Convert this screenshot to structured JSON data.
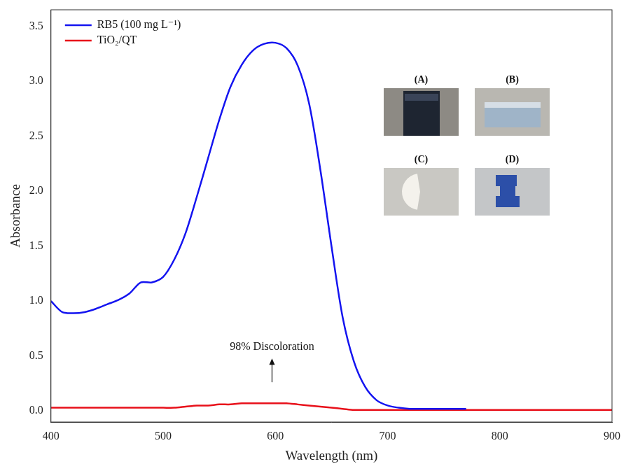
{
  "chart_data": {
    "type": "line",
    "x_label": "Wavelength (nm)",
    "y_label": "Absorbance",
    "x": [
      400,
      410,
      420,
      430,
      440,
      450,
      460,
      470,
      480,
      490,
      500,
      510,
      520,
      530,
      540,
      550,
      560,
      570,
      580,
      590,
      600,
      610,
      620,
      630,
      640,
      650,
      660,
      670,
      680,
      690,
      700,
      710,
      720,
      730,
      740,
      750,
      760,
      770,
      780,
      790,
      800,
      810,
      820,
      830,
      840,
      850,
      860,
      870,
      880,
      890,
      900
    ],
    "series": [
      {
        "name": "RB5 (100 mg L⁻¹)",
        "color": "#1414f0",
        "values": [
          1.0,
          0.9,
          0.89,
          0.9,
          0.93,
          0.97,
          1.01,
          1.07,
          1.17,
          1.17,
          1.22,
          1.38,
          1.62,
          1.95,
          2.3,
          2.65,
          2.95,
          3.15,
          3.28,
          3.34,
          3.35,
          3.3,
          3.14,
          2.8,
          2.2,
          1.5,
          0.85,
          0.45,
          0.22,
          0.1,
          0.05,
          0.03,
          0.02,
          0.02,
          0.02,
          0.02,
          0.02,
          0.02,
          null,
          null,
          null,
          null,
          null,
          null,
          null,
          null,
          null,
          null,
          null,
          null,
          null
        ]
      },
      {
        "name": "TiO₂/QT",
        "color": "#e8101a",
        "values": [
          0.03,
          0.03,
          0.03,
          0.03,
          0.03,
          0.03,
          0.03,
          0.03,
          0.03,
          0.03,
          0.03,
          0.03,
          0.04,
          0.05,
          0.05,
          0.06,
          0.06,
          0.07,
          0.07,
          0.07,
          0.07,
          0.07,
          0.06,
          0.05,
          0.04,
          0.03,
          0.02,
          0.01,
          0.01,
          0.01,
          0.01,
          0.01,
          0.01,
          0.01,
          0.01,
          0.01,
          0.01,
          0.01,
          0.01,
          0.01,
          0.01,
          0.01,
          0.01,
          0.01,
          0.01,
          0.01,
          0.01,
          0.01,
          0.01,
          0.01,
          0.01
        ]
      }
    ],
    "xlim": [
      400,
      900
    ],
    "xticks": [
      400,
      500,
      600,
      700,
      800,
      900
    ],
    "ylim": [
      -0.1,
      3.65
    ],
    "yticks": [
      {
        "value": 0,
        "label": "0.0"
      },
      {
        "value": 0.5,
        "label": "0.5"
      },
      {
        "value": 1,
        "label": "1.0"
      },
      {
        "value": 1.5,
        "label": "1.5"
      },
      {
        "value": 2,
        "label": "2.0"
      },
      {
        "value": 2.5,
        "label": "2.5"
      },
      {
        "value": 3,
        "label": "3.0"
      },
      {
        "value": 3.5,
        "label": "3.5"
      }
    ],
    "grid": false,
    "legend": "upper left",
    "annotations": [
      {
        "text": "98% Discoloration",
        "x": 597,
        "y": 0.58
      }
    ],
    "inset_labels": [
      "(A)",
      "(B)",
      "(C)",
      "(D)"
    ]
  }
}
